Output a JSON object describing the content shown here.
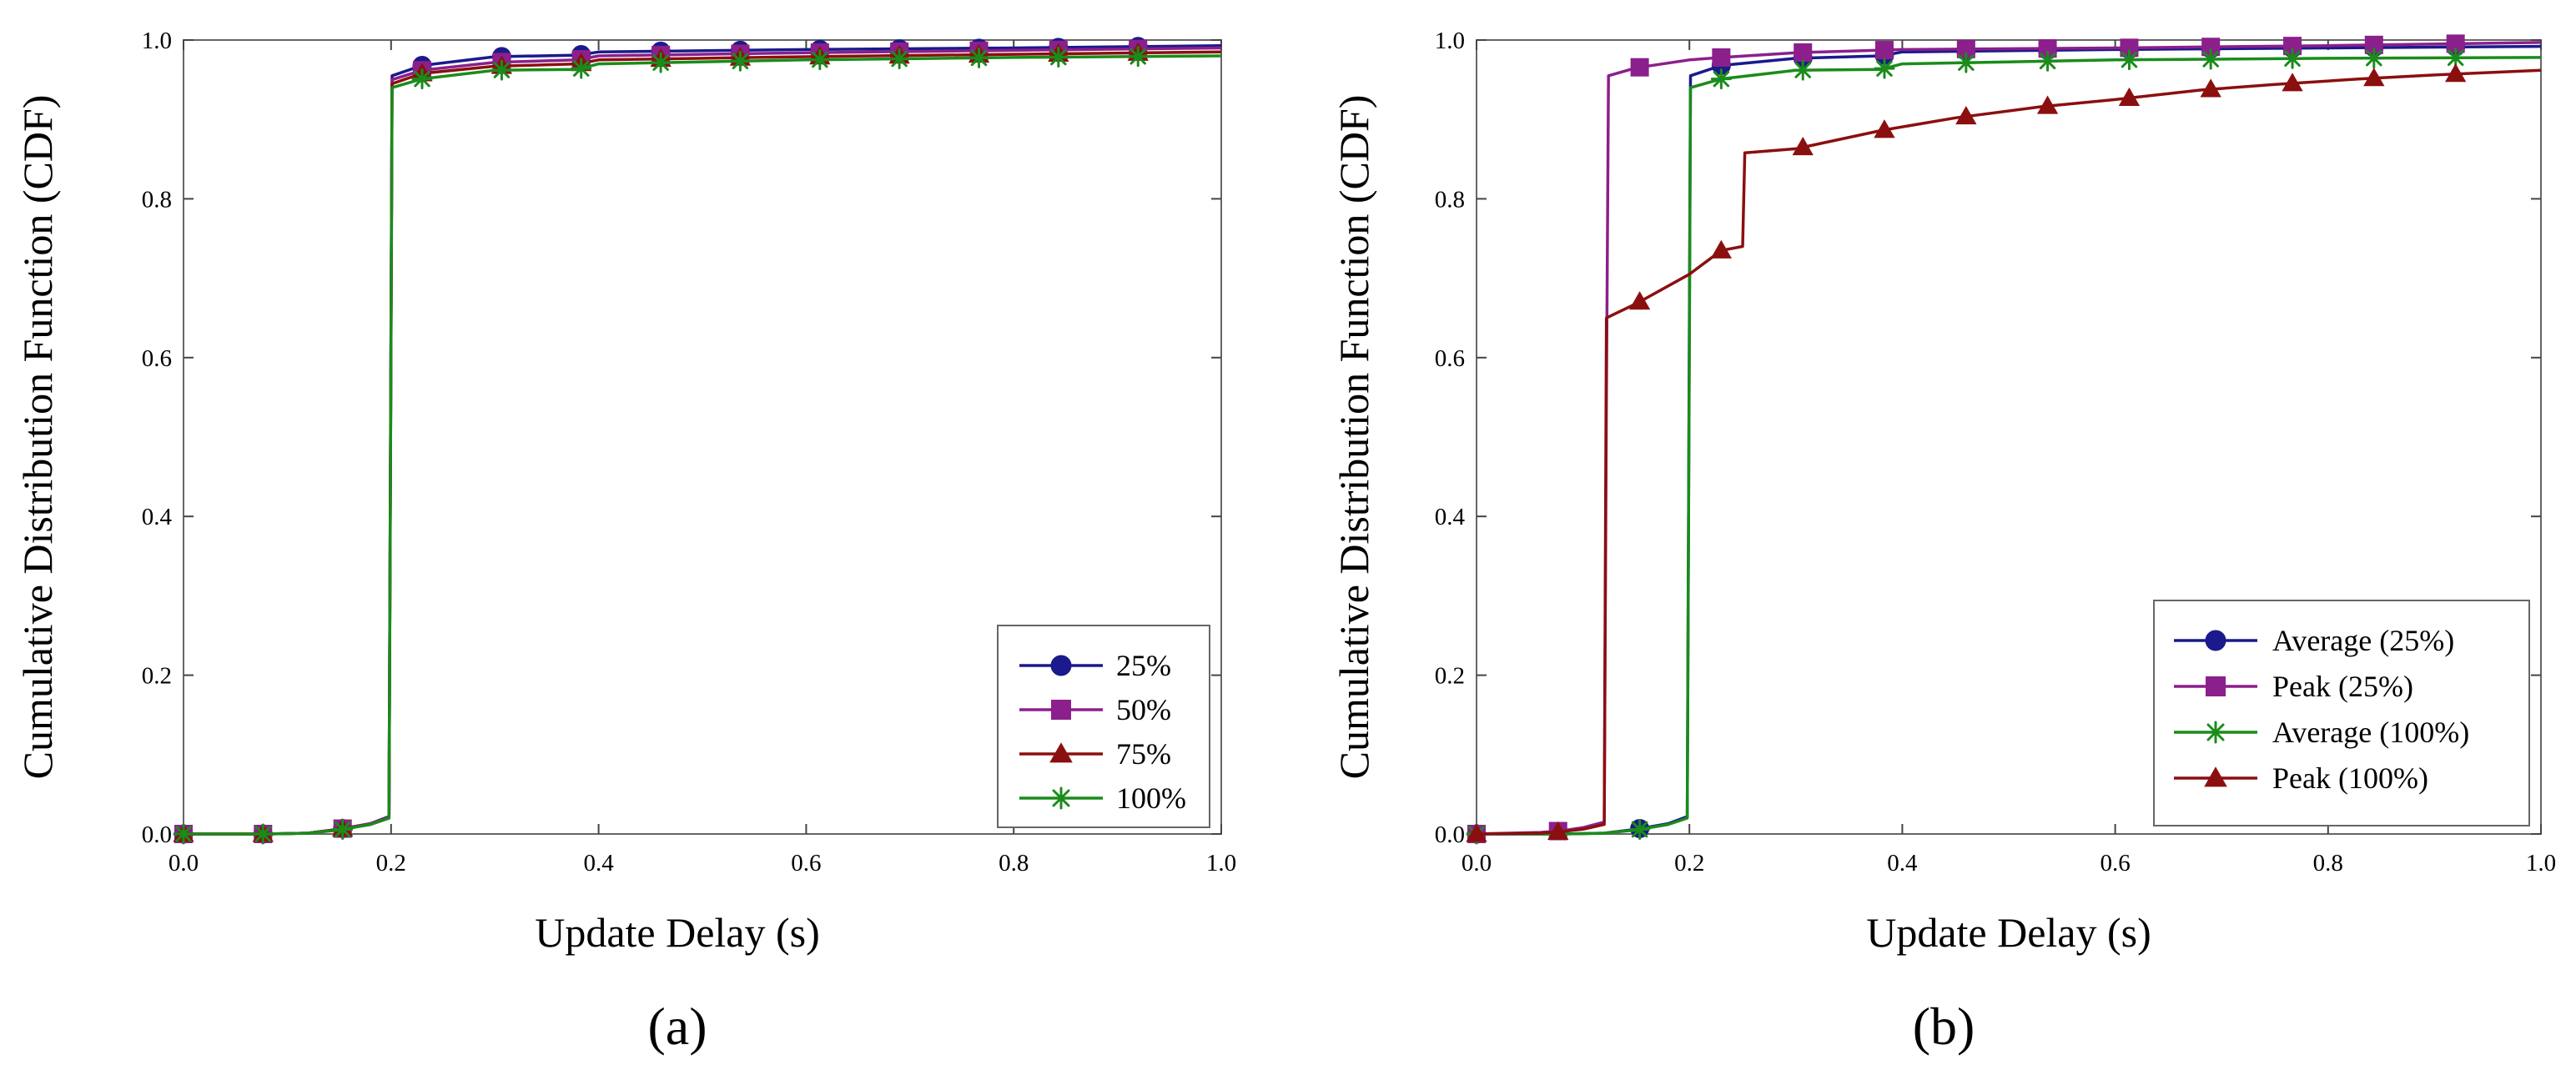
{
  "chart_data": [
    {
      "type": "line",
      "panel_label": "(a)",
      "xlabel": "Update Delay (s)",
      "ylabel": "Cumulative Distribution Function (CDF)",
      "xlim": [
        0,
        1
      ],
      "ylim": [
        0,
        1
      ],
      "x_ticks": [
        "0.0",
        "0.2",
        "0.4",
        "0.6",
        "0.8",
        "1.0"
      ],
      "y_ticks": [
        "0.0",
        "0.2",
        "0.4",
        "0.6",
        "0.8",
        "1.0"
      ],
      "legend_position": "bottom-right",
      "series": [
        {
          "name": "25%",
          "color": "#1a1a8c",
          "marker": "circle",
          "points": [
            [
              0,
              0
            ],
            [
              0.08,
              0
            ],
            [
              0.12,
              0.001
            ],
            [
              0.15,
              0.006
            ],
            [
              0.18,
              0.013
            ],
            [
              0.198,
              0.022
            ],
            [
              0.2,
              0.66
            ],
            [
              0.201,
              0.955
            ],
            [
              0.23,
              0.968
            ],
            [
              0.3,
              0.979
            ],
            [
              0.38,
              0.981
            ],
            [
              0.4,
              0.985
            ],
            [
              0.6,
              0.988
            ],
            [
              0.8,
              0.99
            ],
            [
              1.0,
              0.993
            ]
          ],
          "markers_x": [
            0.0,
            0.0766,
            0.1533,
            0.2299,
            0.3066,
            0.3832,
            0.4599,
            0.5365,
            0.6132,
            0.6898,
            0.7665,
            0.8431,
            0.9198
          ]
        },
        {
          "name": "50%",
          "color": "#8b1f8c",
          "marker": "square",
          "points": [
            [
              0,
              0
            ],
            [
              0.08,
              0
            ],
            [
              0.12,
              0.001
            ],
            [
              0.15,
              0.006
            ],
            [
              0.18,
              0.013
            ],
            [
              0.198,
              0.021
            ],
            [
              0.2,
              0.65
            ],
            [
              0.201,
              0.95
            ],
            [
              0.23,
              0.962
            ],
            [
              0.3,
              0.972
            ],
            [
              0.38,
              0.975
            ],
            [
              0.4,
              0.98
            ],
            [
              0.6,
              0.984
            ],
            [
              0.8,
              0.987
            ],
            [
              1.0,
              0.99
            ]
          ],
          "markers_x": [
            0.0,
            0.0766,
            0.1533,
            0.2299,
            0.3066,
            0.3832,
            0.4599,
            0.5365,
            0.6132,
            0.6898,
            0.7665,
            0.8431,
            0.9198
          ]
        },
        {
          "name": "75%",
          "color": "#8b0f0f",
          "marker": "triangle",
          "points": [
            [
              0,
              0
            ],
            [
              0.08,
              0
            ],
            [
              0.12,
              0.001
            ],
            [
              0.15,
              0.006
            ],
            [
              0.18,
              0.012
            ],
            [
              0.198,
              0.02
            ],
            [
              0.2,
              0.64
            ],
            [
              0.201,
              0.945
            ],
            [
              0.23,
              0.958
            ],
            [
              0.3,
              0.967
            ],
            [
              0.38,
              0.97
            ],
            [
              0.4,
              0.975
            ],
            [
              0.6,
              0.979
            ],
            [
              0.8,
              0.982
            ],
            [
              1.0,
              0.985
            ]
          ],
          "markers_x": [
            0.0,
            0.0766,
            0.1533,
            0.2299,
            0.3066,
            0.3832,
            0.4599,
            0.5365,
            0.6132,
            0.6898,
            0.7665,
            0.8431,
            0.9198
          ]
        },
        {
          "name": "100%",
          "color": "#1a8c1a",
          "marker": "star",
          "points": [
            [
              0,
              0
            ],
            [
              0.08,
              0
            ],
            [
              0.12,
              0.001
            ],
            [
              0.15,
              0.005
            ],
            [
              0.18,
              0.012
            ],
            [
              0.198,
              0.02
            ],
            [
              0.2,
              0.63
            ],
            [
              0.201,
              0.94
            ],
            [
              0.23,
              0.951
            ],
            [
              0.3,
              0.962
            ],
            [
              0.38,
              0.963
            ],
            [
              0.4,
              0.97
            ],
            [
              0.6,
              0.975
            ],
            [
              0.8,
              0.978
            ],
            [
              1.0,
              0.98
            ]
          ],
          "markers_x": [
            0.0,
            0.0766,
            0.1533,
            0.2299,
            0.3066,
            0.3832,
            0.4599,
            0.5365,
            0.6132,
            0.6898,
            0.7665,
            0.8431,
            0.9198
          ]
        }
      ]
    },
    {
      "type": "line",
      "panel_label": "(b)",
      "xlabel": "Update Delay (s)",
      "ylabel": "Cumulative Distribution Function (CDF)",
      "xlim": [
        0,
        1
      ],
      "ylim": [
        0,
        1
      ],
      "x_ticks": [
        "0.0",
        "0.2",
        "0.4",
        "0.6",
        "0.8",
        "1.0"
      ],
      "y_ticks": [
        "0.0",
        "0.2",
        "0.4",
        "0.6",
        "0.8",
        "1.0"
      ],
      "legend_position": "bottom-right",
      "series": [
        {
          "name": "Average (25%)",
          "color": "#1a1a8c",
          "marker": "circle",
          "points": [
            [
              0,
              0
            ],
            [
              0.08,
              0
            ],
            [
              0.12,
              0.001
            ],
            [
              0.15,
              0.006
            ],
            [
              0.18,
              0.013
            ],
            [
              0.198,
              0.022
            ],
            [
              0.2,
              0.66
            ],
            [
              0.201,
              0.955
            ],
            [
              0.23,
              0.968
            ],
            [
              0.3,
              0.977
            ],
            [
              0.38,
              0.98
            ],
            [
              0.4,
              0.985
            ],
            [
              0.6,
              0.988
            ],
            [
              0.8,
              0.99
            ],
            [
              1.0,
              0.992
            ]
          ],
          "markers_x": [
            0.0,
            0.1533,
            0.2299,
            0.3066,
            0.3832,
            0.4599,
            0.5365,
            0.6132,
            0.6898,
            0.7665,
            0.8431,
            0.9198
          ]
        },
        {
          "name": "Peak (25%)",
          "color": "#8b1f8c",
          "marker": "square",
          "points": [
            [
              0,
              0
            ],
            [
              0.06,
              0.002
            ],
            [
              0.08,
              0.004
            ],
            [
              0.1,
              0.008
            ],
            [
              0.12,
              0.015
            ],
            [
              0.122,
              0.55
            ],
            [
              0.124,
              0.955
            ],
            [
              0.15,
              0.965
            ],
            [
              0.2,
              0.975
            ],
            [
              0.23,
              0.978
            ],
            [
              0.3,
              0.984
            ],
            [
              0.4,
              0.988
            ],
            [
              0.6,
              0.99
            ],
            [
              0.8,
              0.993
            ],
            [
              1.0,
              0.997
            ]
          ],
          "markers_x": [
            0.0,
            0.0766,
            0.1533,
            0.2299,
            0.3066,
            0.3832,
            0.4599,
            0.5365,
            0.6132,
            0.6898,
            0.7665,
            0.8431,
            0.9198
          ]
        },
        {
          "name": "Average (100%)",
          "color": "#1a8c1a",
          "marker": "star",
          "points": [
            [
              0,
              0
            ],
            [
              0.08,
              0
            ],
            [
              0.12,
              0.001
            ],
            [
              0.15,
              0.005
            ],
            [
              0.18,
              0.012
            ],
            [
              0.198,
              0.02
            ],
            [
              0.2,
              0.63
            ],
            [
              0.201,
              0.94
            ],
            [
              0.23,
              0.951
            ],
            [
              0.3,
              0.962
            ],
            [
              0.38,
              0.963
            ],
            [
              0.4,
              0.97
            ],
            [
              0.6,
              0.975
            ],
            [
              0.8,
              0.977
            ],
            [
              1.0,
              0.978
            ]
          ],
          "markers_x": [
            0.0,
            0.1533,
            0.2299,
            0.3066,
            0.3832,
            0.4599,
            0.5365,
            0.6132,
            0.6898,
            0.7665,
            0.8431,
            0.9198
          ]
        },
        {
          "name": "Peak (100%)",
          "color": "#8b0f0f",
          "marker": "triangle",
          "points": [
            [
              0,
              0
            ],
            [
              0.06,
              0.001
            ],
            [
              0.08,
              0.003
            ],
            [
              0.1,
              0.006
            ],
            [
              0.12,
              0.012
            ],
            [
              0.122,
              0.65
            ],
            [
              0.15,
              0.668
            ],
            [
              0.2,
              0.705
            ],
            [
              0.23,
              0.735
            ],
            [
              0.25,
              0.74
            ],
            [
              0.252,
              0.858
            ],
            [
              0.3,
              0.863
            ],
            [
              0.38,
              0.886
            ],
            [
              0.45,
              0.902
            ],
            [
              0.53,
              0.916
            ],
            [
              0.6,
              0.925
            ],
            [
              0.68,
              0.937
            ],
            [
              0.75,
              0.944
            ],
            [
              0.83,
              0.951
            ],
            [
              0.9,
              0.956
            ],
            [
              1.0,
              0.962
            ]
          ],
          "markers_x": [
            0.0,
            0.0766,
            0.1533,
            0.2299,
            0.3066,
            0.3832,
            0.4599,
            0.5365,
            0.6132,
            0.6898,
            0.7665,
            0.8431,
            0.9198
          ]
        }
      ]
    }
  ]
}
